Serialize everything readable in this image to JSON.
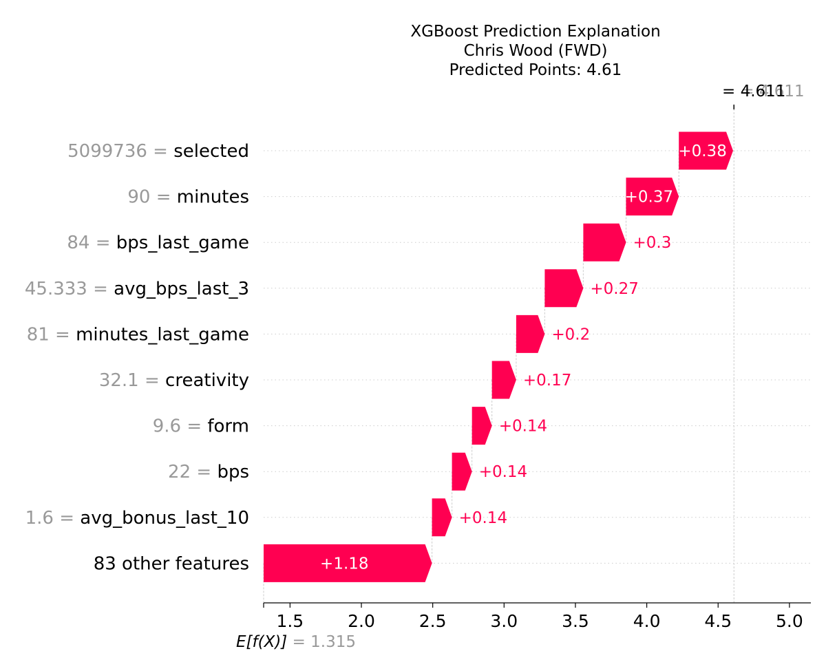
{
  "title_lines": [
    "XGBoost Prediction Explanation",
    "Chris Wood (FWD)",
    "Predicted Points: 4.61"
  ],
  "colors": {
    "positive": "#ff0051",
    "feature_value": "#999999",
    "text": "#000000",
    "grid": "#cccccc"
  },
  "chart_data": {
    "type": "waterfall",
    "base_value": 1.315,
    "final_value": 4.611,
    "xlim": [
      1.315,
      5.15
    ],
    "xticks": [
      1.5,
      2.0,
      2.5,
      3.0,
      3.5,
      4.0,
      4.5,
      5.0
    ],
    "xtick_labels": [
      "1.5",
      "2.0",
      "2.5",
      "3.0",
      "3.5",
      "4.0",
      "4.5",
      "5.0"
    ],
    "base_label": {
      "prefix": "E[f(X)]",
      "eq": "= ",
      "value": "1.315"
    },
    "final_label": {
      "eq": "= ",
      "value": "4.611",
      "overlap_value": "4.611"
    },
    "features": [
      {
        "value": "5099736",
        "name": "selected",
        "contribution": 0.38,
        "label": "+0.38"
      },
      {
        "value": "90",
        "name": "minutes",
        "contribution": 0.37,
        "label": "+0.37"
      },
      {
        "value": "84",
        "name": "bps_last_game",
        "contribution": 0.3,
        "label": "+0.3"
      },
      {
        "value": "45.333",
        "name": "avg_bps_last_3",
        "contribution": 0.27,
        "label": "+0.27"
      },
      {
        "value": "81",
        "name": "minutes_last_game",
        "contribution": 0.2,
        "label": "+0.2"
      },
      {
        "value": "32.1",
        "name": "creativity",
        "contribution": 0.17,
        "label": "+0.17"
      },
      {
        "value": "9.6",
        "name": "form",
        "contribution": 0.14,
        "label": "+0.14"
      },
      {
        "value": "22",
        "name": "bps",
        "contribution": 0.14,
        "label": "+0.14"
      },
      {
        "value": "1.6",
        "name": "avg_bonus_last_10",
        "contribution": 0.14,
        "label": "+0.14"
      },
      {
        "value": "",
        "name": "83 other features",
        "contribution": 1.18,
        "label": "+1.18"
      }
    ]
  }
}
